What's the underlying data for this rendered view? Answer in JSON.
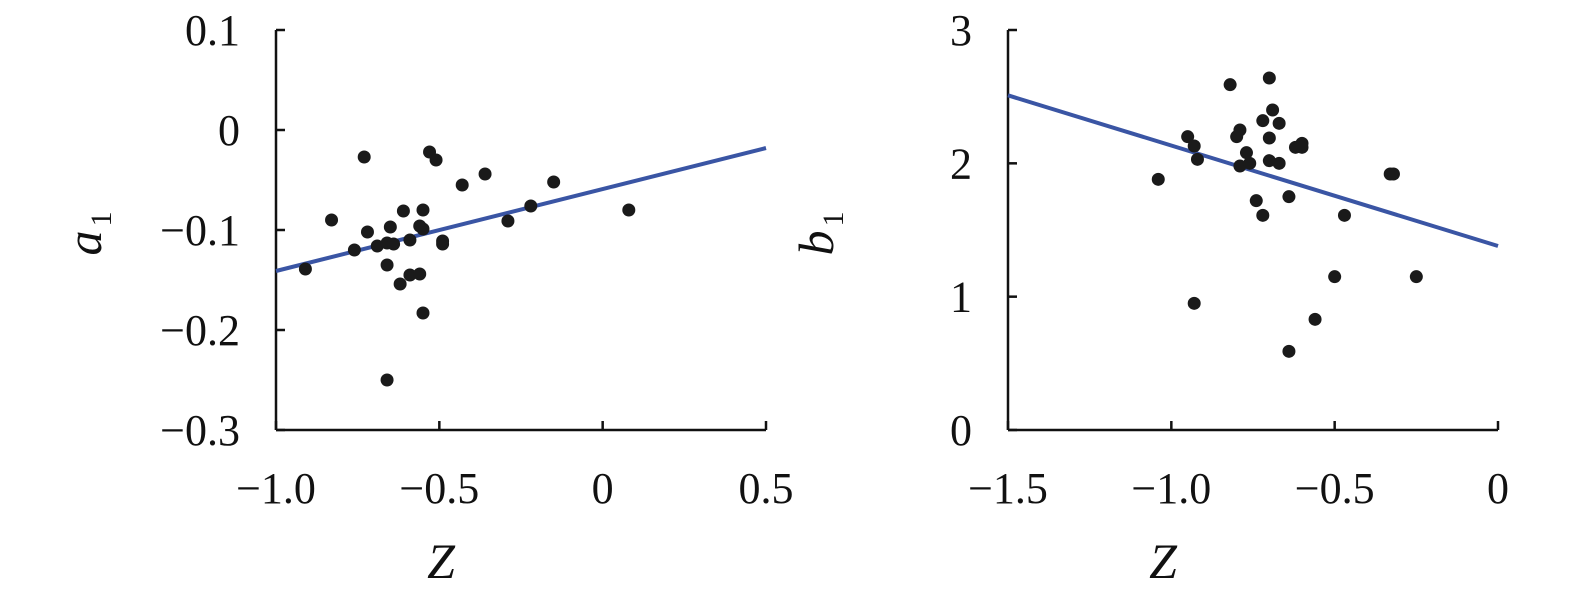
{
  "chart_data": [
    {
      "type": "scatter",
      "title": "",
      "xlabel": "Z",
      "ylabel": "a",
      "ylabel_subscript": "1",
      "xlim": [
        -1.0,
        0.5
      ],
      "ylim": [
        -0.3,
        0.1
      ],
      "xticks": [
        -1.0,
        -0.5,
        0,
        0.5
      ],
      "xtick_labels": [
        "−1.0",
        "−0.5",
        "0",
        "0.5"
      ],
      "yticks": [
        -0.3,
        -0.2,
        -0.1,
        0,
        0.1
      ],
      "ytick_labels": [
        "−0.3",
        "−0.2",
        "−0.1",
        "0",
        "0.1"
      ],
      "grid": false,
      "point_color": "#1a1a1a",
      "line_color": "#3a55a4",
      "points": [
        {
          "x": -0.91,
          "y": -0.139
        },
        {
          "x": -0.83,
          "y": -0.09
        },
        {
          "x": -0.76,
          "y": -0.12
        },
        {
          "x": -0.73,
          "y": -0.027
        },
        {
          "x": -0.72,
          "y": -0.102
        },
        {
          "x": -0.69,
          "y": -0.116
        },
        {
          "x": -0.66,
          "y": -0.113
        },
        {
          "x": -0.66,
          "y": -0.135
        },
        {
          "x": -0.66,
          "y": -0.25
        },
        {
          "x": -0.65,
          "y": -0.097
        },
        {
          "x": -0.64,
          "y": -0.114
        },
        {
          "x": -0.62,
          "y": -0.154
        },
        {
          "x": -0.61,
          "y": -0.081
        },
        {
          "x": -0.59,
          "y": -0.145
        },
        {
          "x": -0.59,
          "y": -0.11
        },
        {
          "x": -0.56,
          "y": -0.096
        },
        {
          "x": -0.56,
          "y": -0.144
        },
        {
          "x": -0.55,
          "y": -0.08
        },
        {
          "x": -0.55,
          "y": -0.099
        },
        {
          "x": -0.55,
          "y": -0.183
        },
        {
          "x": -0.53,
          "y": -0.022
        },
        {
          "x": -0.51,
          "y": -0.03
        },
        {
          "x": -0.49,
          "y": -0.111
        },
        {
          "x": -0.49,
          "y": -0.114
        },
        {
          "x": -0.43,
          "y": -0.055
        },
        {
          "x": -0.36,
          "y": -0.044
        },
        {
          "x": -0.29,
          "y": -0.091
        },
        {
          "x": -0.22,
          "y": -0.076
        },
        {
          "x": -0.15,
          "y": -0.052
        },
        {
          "x": 0.08,
          "y": -0.08
        }
      ],
      "fit_line": {
        "x": [
          -1.0,
          0.5
        ],
        "y": [
          -0.141,
          -0.018
        ]
      }
    },
    {
      "type": "scatter",
      "title": "",
      "xlabel": "Z",
      "ylabel": "b",
      "ylabel_subscript": "1",
      "xlim": [
        -1.5,
        0
      ],
      "ylim": [
        0,
        3
      ],
      "xticks": [
        -1.5,
        -1.0,
        -0.5,
        0
      ],
      "xtick_labels": [
        "−1.5",
        "−1.0",
        "−0.5",
        "0"
      ],
      "yticks": [
        0,
        1,
        2,
        3
      ],
      "ytick_labels": [
        "0",
        "1",
        "2",
        "3"
      ],
      "grid": false,
      "point_color": "#1a1a1a",
      "line_color": "#3a55a4",
      "points": [
        {
          "x": -1.04,
          "y": 1.88
        },
        {
          "x": -0.95,
          "y": 2.2
        },
        {
          "x": -0.93,
          "y": 2.13
        },
        {
          "x": -0.92,
          "y": 2.03
        },
        {
          "x": -0.93,
          "y": 0.95
        },
        {
          "x": -0.82,
          "y": 2.59
        },
        {
          "x": -0.8,
          "y": 2.2
        },
        {
          "x": -0.79,
          "y": 2.25
        },
        {
          "x": -0.79,
          "y": 1.98
        },
        {
          "x": -0.77,
          "y": 2.08
        },
        {
          "x": -0.76,
          "y": 2.0
        },
        {
          "x": -0.74,
          "y": 1.72
        },
        {
          "x": -0.72,
          "y": 2.32
        },
        {
          "x": -0.72,
          "y": 1.61
        },
        {
          "x": -0.7,
          "y": 2.64
        },
        {
          "x": -0.69,
          "y": 2.4
        },
        {
          "x": -0.7,
          "y": 2.19
        },
        {
          "x": -0.7,
          "y": 2.02
        },
        {
          "x": -0.67,
          "y": 2.3
        },
        {
          "x": -0.67,
          "y": 2.0
        },
        {
          "x": -0.64,
          "y": 1.75
        },
        {
          "x": -0.64,
          "y": 0.59
        },
        {
          "x": -0.62,
          "y": 2.12
        },
        {
          "x": -0.6,
          "y": 2.15
        },
        {
          "x": -0.6,
          "y": 2.12
        },
        {
          "x": -0.56,
          "y": 0.83
        },
        {
          "x": -0.47,
          "y": 1.61
        },
        {
          "x": -0.5,
          "y": 1.15
        },
        {
          "x": -0.33,
          "y": 1.92
        },
        {
          "x": -0.32,
          "y": 1.92
        },
        {
          "x": -0.25,
          "y": 1.15
        }
      ],
      "fit_line": {
        "x": [
          -1.5,
          0
        ],
        "y": [
          2.51,
          1.38
        ]
      }
    }
  ]
}
